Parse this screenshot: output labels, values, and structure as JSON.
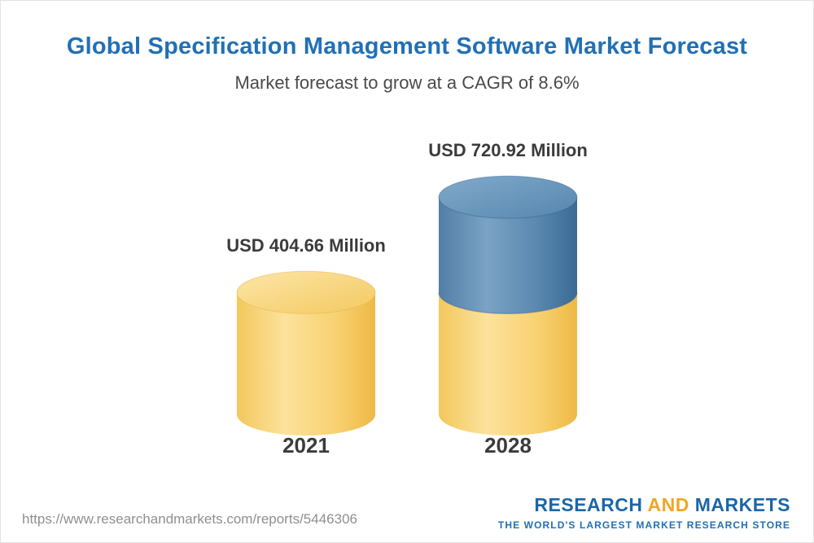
{
  "header": {
    "title": "Global Specification Management Software Market Forecast",
    "subtitle": "Market forecast to grow at a CAGR of 8.6%"
  },
  "chart_data": {
    "type": "bar",
    "subtype": "3d-cylinder-stacked",
    "title": "Global Specification Management Software Market Forecast",
    "subtitle": "Market forecast to grow at a CAGR of 8.6%",
    "cagr_percent": 8.6,
    "unit": "USD Million",
    "categories": [
      "2021",
      "2028"
    ],
    "values": [
      404.66,
      720.92
    ],
    "value_labels": [
      "USD 404.66 Million",
      "USD 720.92 Million"
    ],
    "grid": false,
    "legend": false,
    "colors": {
      "bar_2021": "#f8d170",
      "bar_2028_base": "#f8d170",
      "bar_2028_growth": "#5586af",
      "title_text": "#2170b5"
    }
  },
  "footer": {
    "url": "https://www.researchandmarkets.com/reports/5446306",
    "logo": {
      "part1": "RESEARCH",
      "part2": "AND",
      "part3": "MARKETS",
      "tagline": "THE WORLD'S LARGEST MARKET RESEARCH STORE"
    }
  }
}
